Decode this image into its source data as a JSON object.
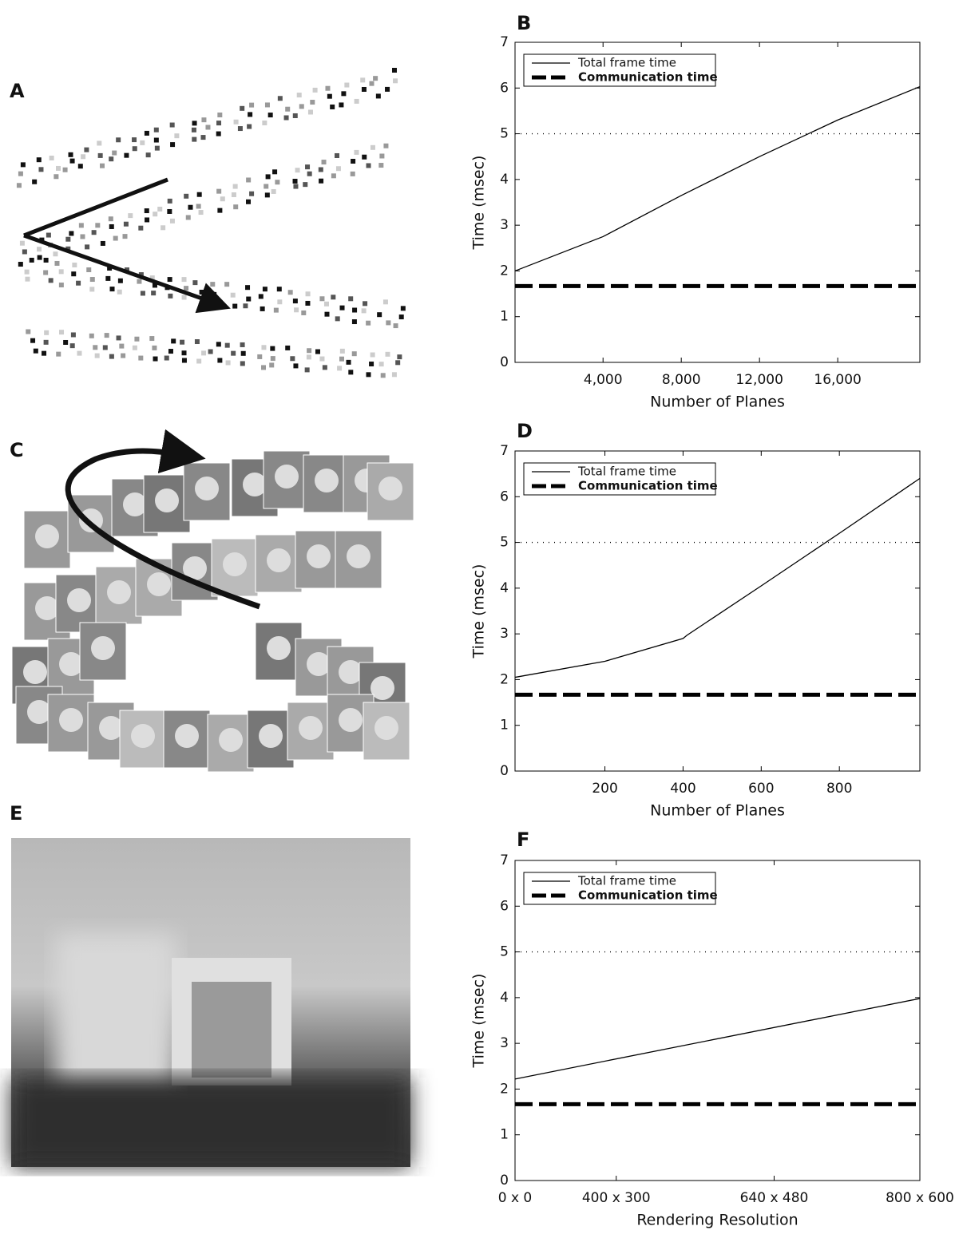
{
  "panels": [
    {
      "label": "A"
    },
    {
      "label": "C"
    },
    {
      "label": "E"
    }
  ],
  "chart_data": [
    {
      "type": "line",
      "title": "B",
      "xlabel": "Number of Planes",
      "ylabel": "Time (msec)",
      "xlim": [
        -500,
        20200
      ],
      "xticks": [
        {
          "value": 4000,
          "label": "4,000"
        },
        {
          "value": 8000,
          "label": "8,000"
        },
        {
          "value": 12000,
          "label": "12,000"
        },
        {
          "value": 16000,
          "label": "16,000"
        }
      ],
      "ylim": [
        0,
        7
      ],
      "yticks": [
        0,
        1,
        2,
        3,
        4,
        5,
        6,
        7
      ],
      "hlines": [
        5
      ],
      "legend": "upper left",
      "series": [
        {
          "name": "Total frame time",
          "color": "#000000",
          "style": "solid",
          "x": [
            -500,
            4000,
            8000,
            12000,
            16000,
            20200
          ],
          "values": [
            2.0,
            2.75,
            3.65,
            4.5,
            5.3,
            6.03
          ]
        },
        {
          "name": "Communication time",
          "color": "#000000",
          "style": "dashed",
          "x": [
            -500,
            20200
          ],
          "values": [
            1.67,
            1.67
          ]
        }
      ]
    },
    {
      "type": "line",
      "title": "D",
      "xlabel": "Number of Planes",
      "ylabel": "Time (msec)",
      "xlim": [
        -30,
        1006
      ],
      "xticks": [
        200,
        400,
        600,
        800
      ],
      "ylim": [
        0,
        7
      ],
      "yticks": [
        0,
        1,
        2,
        3,
        4,
        5,
        6,
        7
      ],
      "hlines": [
        5
      ],
      "legend": "upper left",
      "series": [
        {
          "name": "Total frame time",
          "color": "#000000",
          "style": "solid",
          "x": [
            -30,
            200,
            400,
            410,
            600,
            800,
            1006
          ],
          "values": [
            2.05,
            2.4,
            2.9,
            2.97,
            4.05,
            5.2,
            6.4
          ]
        },
        {
          "name": "Communication time",
          "color": "#000000",
          "style": "dashed",
          "x": [
            -30,
            1006
          ],
          "values": [
            1.67,
            1.67
          ]
        }
      ]
    },
    {
      "type": "line",
      "title": "F",
      "xlabel": "Rendering Resolution",
      "ylabel": "Time (msec)",
      "xlim": [
        0,
        480000
      ],
      "xticks": [
        {
          "value": 0,
          "label": "0 x 0"
        },
        {
          "value": 120000,
          "label": "400 x 300"
        },
        {
          "value": 307200,
          "label": "640 x 480"
        },
        {
          "value": 480000,
          "label": "800 x 600"
        }
      ],
      "ylim": [
        0,
        7
      ],
      "yticks": [
        0,
        1,
        2,
        3,
        4,
        5,
        6,
        7
      ],
      "hlines": [
        5
      ],
      "legend": "upper left",
      "series": [
        {
          "name": "Total frame time",
          "color": "#000000",
          "style": "solid",
          "x": [
            0,
            480000
          ],
          "values": [
            2.22,
            3.98
          ]
        },
        {
          "name": "Communication time",
          "color": "#000000",
          "style": "dashed",
          "x": [
            0,
            480000
          ],
          "values": [
            1.67,
            1.67
          ]
        }
      ]
    }
  ]
}
